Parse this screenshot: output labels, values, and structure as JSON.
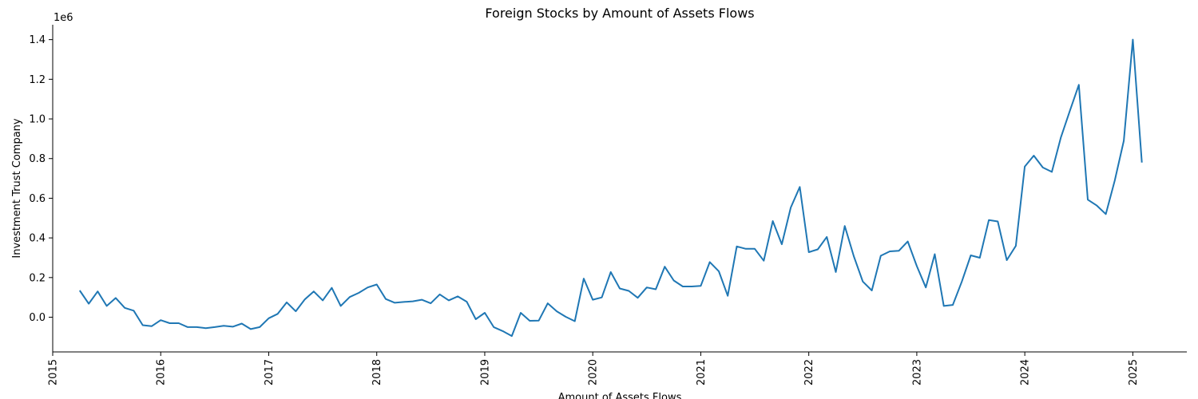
{
  "chart_data": {
    "type": "line",
    "title": "Foreign Stocks by Amount of Assets Flows",
    "xlabel": "Amount of Assets Flows",
    "ylabel": "Investment Trust Company",
    "offset_label": "1e6",
    "xlim": [
      "2015-01-01",
      "2025-07-01"
    ],
    "ylim": [
      -175000,
      1475000
    ],
    "x_ticks": [
      "2015",
      "2016",
      "2017",
      "2018",
      "2019",
      "2020",
      "2021",
      "2022",
      "2023",
      "2024",
      "2025"
    ],
    "y_ticks": [
      "0.0",
      "0.2",
      "0.4",
      "0.6",
      "0.8",
      "1.0",
      "1.2",
      "1.4"
    ],
    "y_tick_values": [
      0,
      200000,
      400000,
      600000,
      800000,
      1000000,
      1200000,
      1400000
    ],
    "grid": false,
    "color": "#1f77b4",
    "series": [
      {
        "x": [
          "2015-04",
          "2015-05",
          "2015-06",
          "2015-07",
          "2015-08",
          "2015-09",
          "2015-10",
          "2015-11",
          "2015-12",
          "2016-01",
          "2016-02",
          "2016-03",
          "2016-04",
          "2016-05",
          "2016-06",
          "2016-07",
          "2016-08",
          "2016-09",
          "2016-10",
          "2016-11",
          "2016-12",
          "2017-01",
          "2017-02",
          "2017-03",
          "2017-04",
          "2017-05",
          "2017-06",
          "2017-07",
          "2017-08",
          "2017-09",
          "2017-10",
          "2017-11",
          "2017-12",
          "2018-01",
          "2018-02",
          "2018-03",
          "2018-04",
          "2018-05",
          "2018-06",
          "2018-07",
          "2018-08",
          "2018-09",
          "2018-10",
          "2018-11",
          "2018-12",
          "2019-01",
          "2019-02",
          "2019-03",
          "2019-04",
          "2019-05",
          "2019-06",
          "2019-07",
          "2019-08",
          "2019-09",
          "2019-10",
          "2019-11",
          "2019-12",
          "2020-01",
          "2020-02",
          "2020-03",
          "2020-04",
          "2020-05",
          "2020-06",
          "2020-07",
          "2020-08",
          "2020-09",
          "2020-10",
          "2020-11",
          "2020-12",
          "2021-01",
          "2021-02",
          "2021-03",
          "2021-04",
          "2021-05",
          "2021-06",
          "2021-07",
          "2021-08",
          "2021-09",
          "2021-10",
          "2021-11",
          "2021-12",
          "2022-01",
          "2022-02",
          "2022-03",
          "2022-04",
          "2022-05",
          "2022-06",
          "2022-07",
          "2022-08",
          "2022-09",
          "2022-10",
          "2022-11",
          "2022-12",
          "2023-01",
          "2023-02",
          "2023-03",
          "2023-04",
          "2023-05",
          "2023-06",
          "2023-07",
          "2023-08",
          "2023-09",
          "2023-10",
          "2023-11",
          "2023-12",
          "2024-01",
          "2024-02",
          "2024-03",
          "2024-04",
          "2024-05",
          "2024-06",
          "2024-07",
          "2024-08",
          "2024-09",
          "2024-10",
          "2024-11",
          "2024-12",
          "2025-01",
          "2025-02"
        ],
        "values": [
          135000,
          68000,
          130000,
          57000,
          97000,
          47000,
          33000,
          -40000,
          -45000,
          -15000,
          -30000,
          -30000,
          -50000,
          -50000,
          -55000,
          -50000,
          -43000,
          -48000,
          -32000,
          -60000,
          -50000,
          -5000,
          17000,
          75000,
          30000,
          90000,
          130000,
          85000,
          148000,
          57000,
          102000,
          123000,
          150000,
          165000,
          92000,
          73000,
          77000,
          80000,
          88000,
          70000,
          115000,
          85000,
          105000,
          78000,
          -10000,
          22000,
          -50000,
          -70000,
          -95000,
          22000,
          -18000,
          -17000,
          70000,
          30000,
          2000,
          -20000,
          195000,
          88000,
          100000,
          228000,
          145000,
          133000,
          98000,
          150000,
          141000,
          255000,
          185000,
          155000,
          155000,
          158000,
          278000,
          232000,
          108000,
          357000,
          345000,
          345000,
          285000,
          485000,
          368000,
          553000,
          657000,
          328000,
          342000,
          405000,
          228000,
          460000,
          308000,
          180000,
          135000,
          310000,
          332000,
          335000,
          382000,
          258000,
          150000,
          318000,
          57000,
          62000,
          180000,
          312000,
          300000,
          490000,
          483000,
          288000,
          360000,
          760000,
          815000,
          755000,
          733000,
          905000,
          1040000,
          1172000,
          593000,
          563000,
          520000,
          690000,
          890000,
          1400000,
          780000
        ]
      }
    ]
  }
}
